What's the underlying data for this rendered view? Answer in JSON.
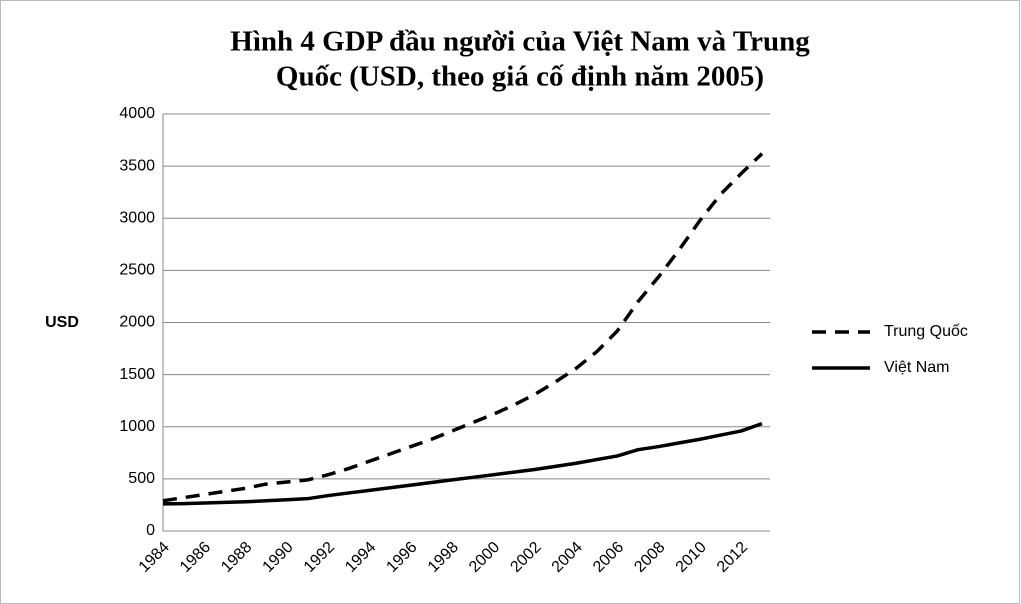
{
  "chart_data": {
    "type": "line",
    "title": [
      "Hình 4     GDP đầu người của Việt Nam và Trung",
      "Quốc (USD, theo giá cố định năm 2005)"
    ],
    "y_label": "USD",
    "categories": [
      "1984",
      null,
      "1986",
      null,
      "1988",
      null,
      "1990",
      null,
      "1992",
      null,
      "1994",
      null,
      "1996",
      null,
      "1998",
      null,
      "2000",
      null,
      "2002",
      null,
      "2004",
      null,
      "2006",
      null,
      "2008",
      null,
      "2010",
      null,
      "2012",
      null
    ],
    "series": [
      {
        "name": "Trung Quốc",
        "color": "#000000",
        "line_style": "dashed",
        "values": [
          290,
          320,
          350,
          380,
          410,
          450,
          470,
          490,
          540,
          600,
          670,
          740,
          810,
          880,
          960,
          1040,
          1120,
          1210,
          1310,
          1430,
          1560,
          1720,
          1920,
          2200,
          2440,
          2700,
          2980,
          3230,
          3430,
          3620
        ]
      },
      {
        "name": "Việt Nam",
        "color": "#000000",
        "line_style": "solid",
        "values": [
          260,
          262,
          268,
          274,
          280,
          290,
          300,
          310,
          340,
          365,
          390,
          415,
          440,
          465,
          490,
          515,
          540,
          565,
          590,
          620,
          650,
          685,
          720,
          780,
          810,
          845,
          880,
          920,
          960,
          1030
        ]
      }
    ],
    "ylim": [
      0,
      4000
    ],
    "yticks": [
      0,
      500,
      1000,
      1500,
      2000,
      2500,
      3000,
      3500,
      4000
    ],
    "grid": true,
    "legend": "right"
  }
}
